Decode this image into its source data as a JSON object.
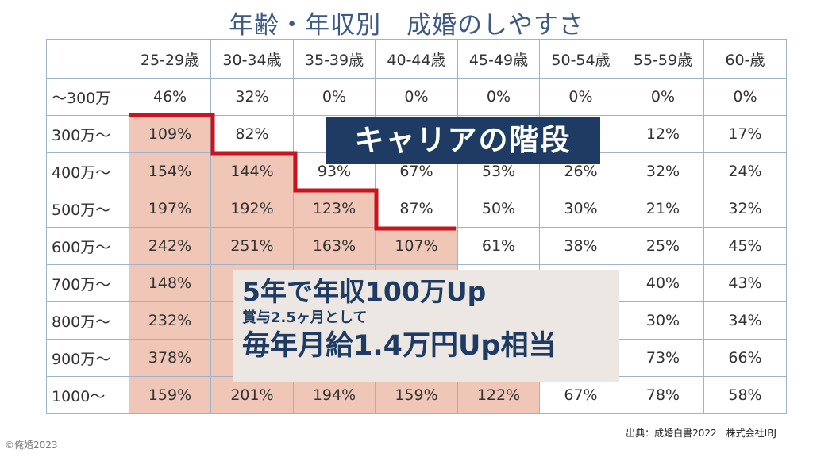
{
  "title": "年齢・年収別　成婚のしやすさ",
  "table": {
    "corner": "",
    "columns": [
      "25-29歳",
      "30-34歳",
      "35-39歳",
      "40-44歳",
      "45-49歳",
      "50-54歳",
      "55-59歳",
      "60-歳"
    ],
    "rows": [
      {
        "label": "〜300万",
        "cells": [
          "46%",
          "32%",
          "0%",
          "0%",
          "0%",
          "0%",
          "0%",
          "0%"
        ]
      },
      {
        "label": "300万〜",
        "cells": [
          "109%",
          "82%",
          "5",
          "",
          "",
          "",
          "12%",
          "17%"
        ]
      },
      {
        "label": "400万〜",
        "cells": [
          "154%",
          "144%",
          "93%",
          "67%",
          "53%",
          "26%",
          "32%",
          "24%"
        ]
      },
      {
        "label": "500万〜",
        "cells": [
          "197%",
          "192%",
          "123%",
          "87%",
          "50%",
          "30%",
          "21%",
          "32%"
        ]
      },
      {
        "label": "600万〜",
        "cells": [
          "242%",
          "251%",
          "163%",
          "107%",
          "61%",
          "38%",
          "25%",
          "45%"
        ]
      },
      {
        "label": "700万〜",
        "cells": [
          "148%",
          "2",
          "",
          "",
          "",
          "",
          "40%",
          "43%"
        ]
      },
      {
        "label": "800万〜",
        "cells": [
          "232%",
          "2",
          "",
          "",
          "",
          "",
          "30%",
          "34%"
        ]
      },
      {
        "label": "900万〜",
        "cells": [
          "378%",
          "3",
          "",
          "",
          "",
          "",
          "73%",
          "66%"
        ]
      },
      {
        "label": "1000〜",
        "cells": [
          "159%",
          "201%",
          "194%",
          "159%",
          "122%",
          "67%",
          "78%",
          "58%"
        ]
      }
    ]
  },
  "overlay_career": "キャリアの階段",
  "overlay_callout": {
    "line1": "5年で年収100万Up",
    "line2": "賞与2.5ヶ月として",
    "line3": "毎年月給1.4万円Up相当"
  },
  "source": "出典：成婚白書2022　株式会社IBJ",
  "copyright": "©俺婚2023",
  "colors": {
    "title": "#3c5a86",
    "grid_line": "#9db4cc",
    "shade": "#f0c7b7",
    "stair_line": "#c8141e",
    "career_bg": "#1d3b63",
    "callout_bg": "#ece7e2"
  }
}
